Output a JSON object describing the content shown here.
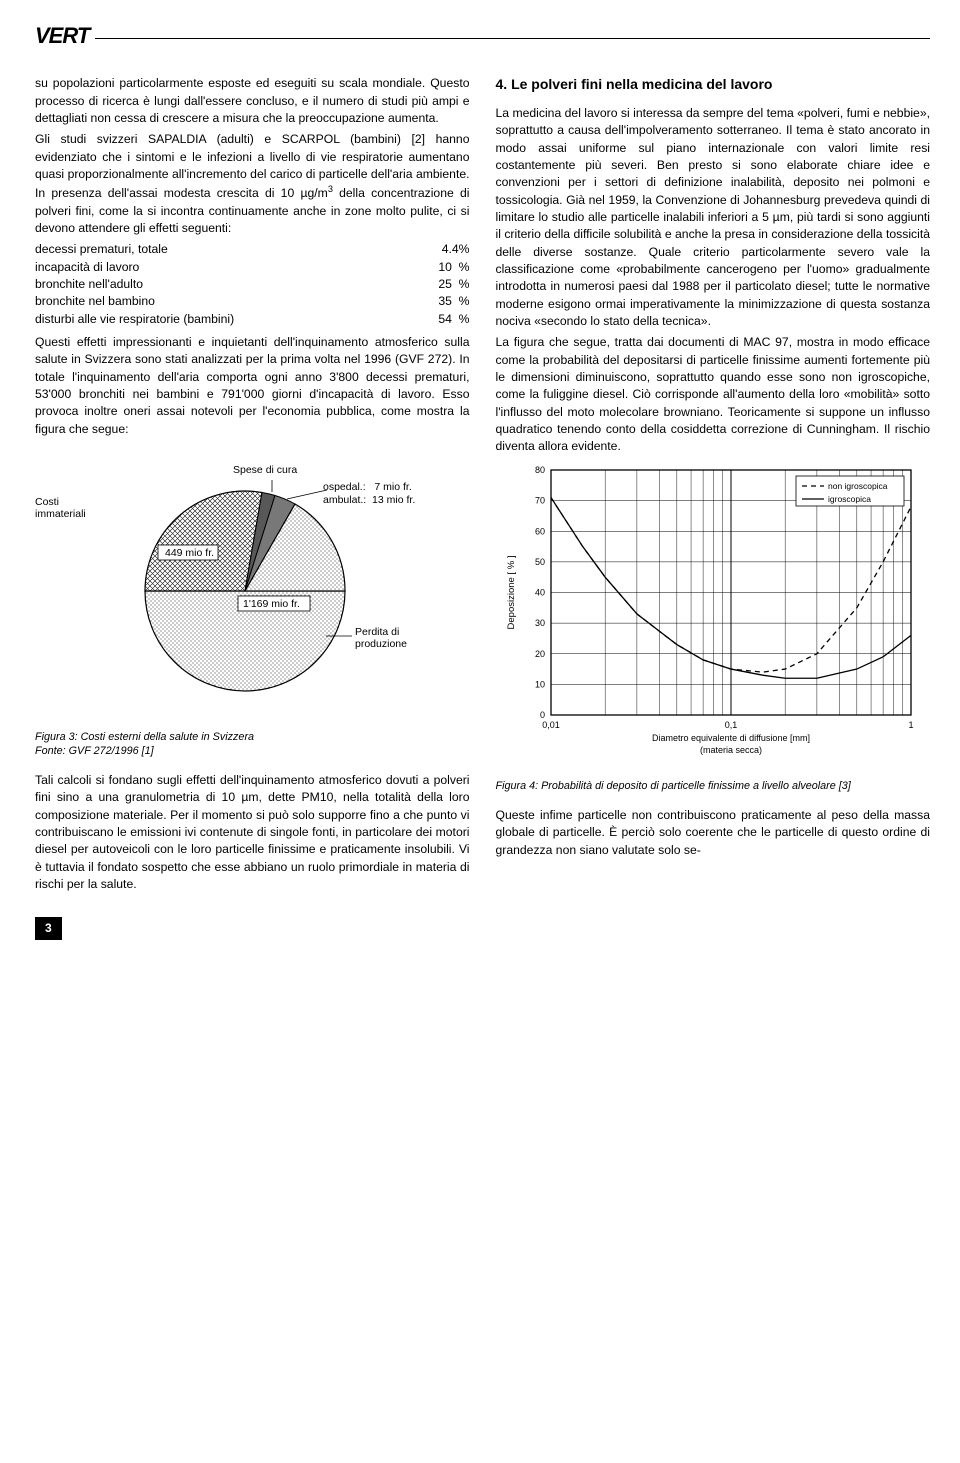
{
  "logo": "VERT",
  "page_number": "3",
  "left": {
    "p1": "su popolazioni particolarmente esposte ed eseguiti su scala mondiale. Questo processo di ricerca è lungi dall'essere concluso, e il numero di studi più ampi e dettagliati non cessa di crescere a misura che la preoccupazione aumenta.",
    "p2a": "Gli studi svizzeri SAPALDIA (adulti) e SCARPOL (bambini) [2] hanno evidenziato che i sintomi e le infezioni a livello di vie respiratorie aumentano quasi proporzionalmente all'incremento del carico di particelle dell'aria ambiente. In presenza dell'assai modesta crescita di 10 µg/m",
    "p2b": " della concentrazione di polveri fini, come la si incontra continuamente anche in zone molto pulite, ci si devono attendere gli effetti seguenti:",
    "stats": [
      {
        "label": "decessi prematuri, totale",
        "value": "4.4%"
      },
      {
        "label": "incapacità di lavoro",
        "value": "10  %"
      },
      {
        "label": "bronchite nell'adulto",
        "value": "25  %"
      },
      {
        "label": "bronchite nel bambino",
        "value": "35  %"
      },
      {
        "label": "disturbi alle vie respiratorie (bambini)",
        "value": "54  %"
      }
    ],
    "p3": "Questi effetti impressionanti e inquietanti dell'inquinamento atmosferico sulla salute in Svizzera sono stati analizzati per la prima volta nel 1996 (GVF 272). In totale l'inquinamento dell'aria comporta ogni anno 3'800 decessi prematuri, 53'000 bronchiti nei bambini e 791'000 giorni d'incapacità di lavoro. Esso provoca inoltre oneri assai notevoli per l'economia pubblica, come mostra la figura che segue:",
    "pie": {
      "labels": {
        "top": "Spese di cura",
        "tl": "Costi\nimmateriali",
        "tr1": "ospedal.:",
        "tr1v": "7 mio fr.",
        "tr2": "ambulat.:",
        "tr2v": "13 mio fr.",
        "seg1": "449 mio fr.",
        "seg2": "1'169 mio fr.",
        "br": "Perdita di\nproduzione"
      },
      "colors": {
        "top_slice": "#585858",
        "crosshatch": "#404040",
        "dots": "#d8d8d8",
        "border": "#000000",
        "bg": "#ffffff"
      },
      "caption": "Figura 3: Costi esterni della salute in Svizzera\nFonte: GVF 272/1996 [1]"
    },
    "p4": "Tali calcoli si fondano sugli effetti dell'inquinamento atmosferico dovuti a polveri fini sino a una granulometria di 10 µm, dette PM10, nella totalità della loro composizione materiale. Per il momento si può solo supporre fino a che punto vi contribuiscano le emissioni ivi contenute di singole fonti, in particolare dei motori diesel per autoveicoli con le loro particelle finissime e praticamente insolubili. Vi è tuttavia il fondato sospetto che esse abbiano un ruolo primordiale in materia di rischi per la salute."
  },
  "right": {
    "heading": "4.  Le polveri fini nella medicina del lavoro",
    "p1": "La medicina del lavoro si interessa da sempre del tema «polveri, fumi e nebbie», soprattutto a causa dell'impolveramento sotterraneo. Il tema è stato ancorato in modo assai uniforme sul piano internazionale con valori limite resi costantemente più severi. Ben presto si sono elaborate chiare idee e convenzioni per i settori di definizione inalabilità, deposito nei polmoni e tossicologia. Già nel 1959, la Convenzione di Johannesburg prevedeva quindi di limitare lo studio alle particelle inalabili inferiori a 5 µm, più tardi si sono aggiunti il criterio della difficile solubilità e anche la presa in considerazione della tossicità delle diverse sostanze. Quale criterio particolarmente severo vale la classificazione come «probabilmente cancerogeno per l'uomo» gradualmente introdotta in numerosi paesi dal 1988 per il particolato diesel; tutte le normative moderne esigono ormai imperativamente la minimizzazione di questa sostanza nociva «secondo lo stato della tecnica».",
    "p2": "La figura che segue, tratta dai documenti di MAC 97, mostra in modo efficace come la probabilità del depositarsi di particelle finissime aumenti fortemente più le dimensioni diminuiscono, soprattutto quando esse sono non igroscopiche, come la fuliggine diesel. Ciò corrisponde all'aumento della loro «mobilità» sotto l'influsso del moto molecolare browniano. Teoricamente si suppone un influsso quadratico tenendo conto della cosiddetta correzione di Cunningham. Il rischio diventa allora evidente.",
    "linechart": {
      "type": "line",
      "x_scale": "log",
      "xlim": [
        0.01,
        1
      ],
      "ylim": [
        0,
        80
      ],
      "ytick_step": 10,
      "x_ticks": [
        0.01,
        0.1,
        1
      ],
      "x_tick_labels": [
        "0,01",
        "0,1",
        "1"
      ],
      "ylabel": "Deposizione [ % ]",
      "xlabel": "Diametro equivalente di diffusione [mm]",
      "xlabel_sub": "(materia secca)",
      "series": [
        {
          "name": "non igroscopica",
          "dash": "5,4",
          "color": "#000000",
          "points": [
            [
              0.01,
              71
            ],
            [
              0.015,
              55
            ],
            [
              0.02,
              45
            ],
            [
              0.03,
              33
            ],
            [
              0.05,
              23
            ],
            [
              0.07,
              18
            ],
            [
              0.1,
              15
            ],
            [
              0.15,
              14
            ],
            [
              0.2,
              15
            ],
            [
              0.3,
              20
            ],
            [
              0.5,
              35
            ],
            [
              0.7,
              50
            ],
            [
              1,
              68
            ]
          ]
        },
        {
          "name": "igroscopica",
          "dash": "none",
          "color": "#000000",
          "points": [
            [
              0.01,
              71
            ],
            [
              0.015,
              55
            ],
            [
              0.02,
              45
            ],
            [
              0.03,
              33
            ],
            [
              0.05,
              23
            ],
            [
              0.07,
              18
            ],
            [
              0.1,
              15
            ],
            [
              0.15,
              13
            ],
            [
              0.2,
              12
            ],
            [
              0.3,
              12
            ],
            [
              0.5,
              15
            ],
            [
              0.7,
              19
            ],
            [
              1,
              26
            ]
          ]
        }
      ],
      "legend_pos": "top-right",
      "grid_color": "#000000",
      "bg": "#ffffff",
      "caption": "Figura 4: Probabilità di deposito di particelle finissime a livello alveolare [3]"
    },
    "p3": "Queste infime particelle non contribuiscono praticamente al peso della massa globale di particelle. È perciò solo coerente che le particelle di questo ordine di grandezza non siano valutate solo se-"
  }
}
